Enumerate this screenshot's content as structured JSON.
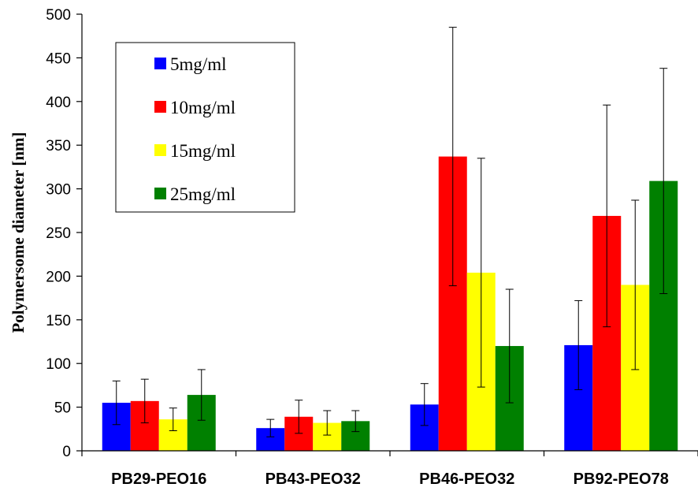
{
  "chart_data": {
    "type": "bar",
    "title": "",
    "xlabel": "",
    "ylabel": "Polymersome diameter [nm]",
    "ylim": [
      0,
      500
    ],
    "yticks": [
      0,
      50,
      100,
      150,
      200,
      250,
      300,
      350,
      400,
      450,
      500
    ],
    "grid": false,
    "legend_position": "top-left",
    "categories": [
      "PB29-PEO16",
      "PB43-PEO32",
      "PB46-PEO32",
      "PB92-PEO78"
    ],
    "series": [
      {
        "name": "5mg/ml",
        "color": "#0000ff",
        "values": [
          55,
          26,
          53,
          121
        ],
        "error": [
          25,
          10,
          24,
          51
        ]
      },
      {
        "name": "10mg/ml",
        "color": "#ff0000",
        "values": [
          57,
          39,
          337,
          269
        ],
        "error": [
          25,
          19,
          148,
          127
        ]
      },
      {
        "name": "15mg/ml",
        "color": "#ffff00",
        "values": [
          36,
          32,
          204,
          190
        ],
        "error": [
          13,
          14,
          131,
          97
        ]
      },
      {
        "name": "25mg/ml",
        "color": "#008000",
        "values": [
          64,
          34,
          120,
          309
        ],
        "error": [
          29,
          12,
          65,
          129
        ]
      }
    ]
  }
}
